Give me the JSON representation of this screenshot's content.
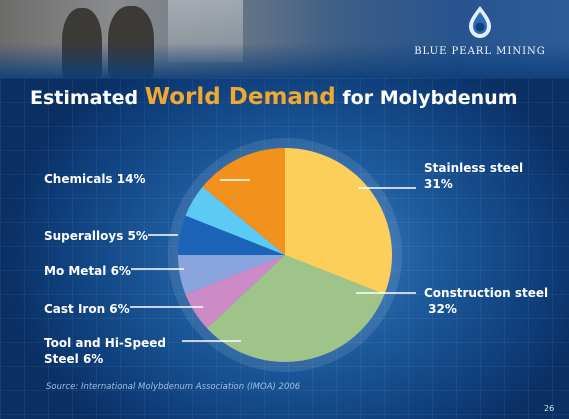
{
  "brand": {
    "name": "BLUE PEARL MINING",
    "logo_icon": "pearl-drop-icon"
  },
  "title": {
    "prefix": "Estimated",
    "highlight": "World Demand",
    "suffix": "for Molybdenum"
  },
  "source": "Source: International Molybdenum Association (IMOA) 2006",
  "page_number": "26",
  "chart_data": {
    "type": "pie",
    "title": "Estimated World Demand for Molybdenum",
    "unit": "%",
    "slices": [
      {
        "name": "Stainless steel",
        "value": 31,
        "label_lines": [
          "Stainless steel",
          "31%"
        ],
        "color": "#fbcf5a"
      },
      {
        "name": "Construction steel",
        "value": 32,
        "label_lines": [
          "Construction steel",
          " 32%"
        ],
        "color": "#9ec48a"
      },
      {
        "name": "Tool and Hi-Speed Steel",
        "value": 6,
        "label_lines": [
          "Tool and Hi-Speed",
          "Steel  6%"
        ],
        "color": "#cc8ac6"
      },
      {
        "name": "Cast Iron",
        "value": 6,
        "label_lines": [
          "Cast Iron 6%"
        ],
        "color": "#8aa4dd"
      },
      {
        "name": "Mo Metal",
        "value": 6,
        "label_lines": [
          "Mo Metal 6%"
        ],
        "color": "#1b64b8"
      },
      {
        "name": "Superalloys",
        "value": 5,
        "label_lines": [
          "Superalloys 5%"
        ],
        "color": "#5ccaf4"
      },
      {
        "name": "Chemicals",
        "value": 14,
        "label_lines": [
          "Chemicals 14%"
        ],
        "color": "#f2911c"
      }
    ],
    "legend": "none"
  }
}
